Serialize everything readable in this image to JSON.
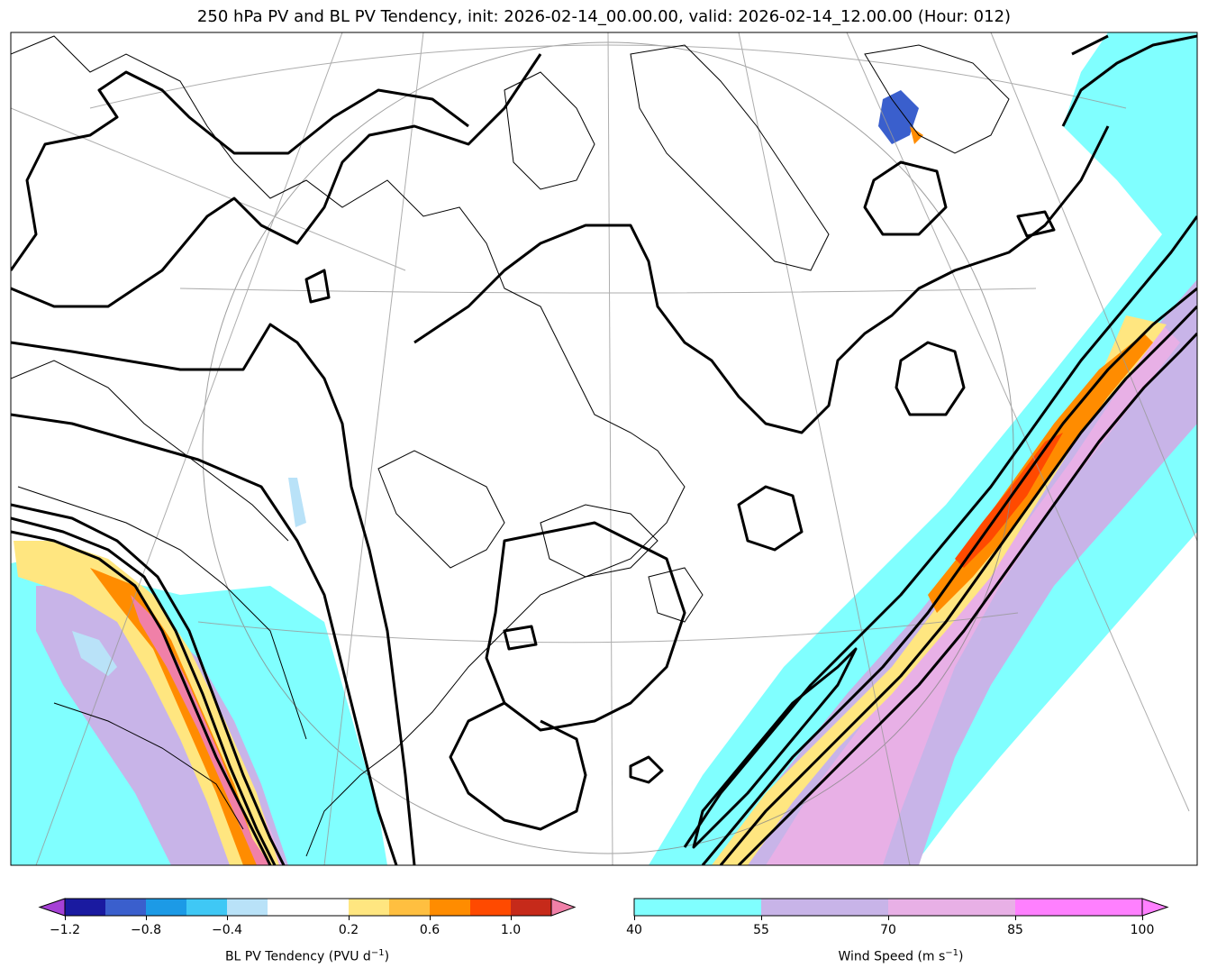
{
  "title": "250 hPa PV and BL PV Tendency, init: 2026-02-14_00.00.00, valid: 2026-02-14_12.00.00 (Hour: 012)",
  "colors": {
    "wind_40_55": "#80ffff",
    "wind_55_70": "#c8b4e8",
    "wind_70_85": "#e8b0e6",
    "wind_85_100": "#ff80ff",
    "pv_contour": "#000000",
    "land_ocean": "#ffffff",
    "graticule": "#999999"
  },
  "colorbar_left": {
    "label": "BL PV Tendency (PVU d",
    "label_sup": "−1",
    "label_tail": ")",
    "ticks": [
      "−1.2",
      "−0.8",
      "−0.4",
      "0.2",
      "0.6",
      "1.0"
    ],
    "tick_values": [
      -1.2,
      -0.8,
      -0.4,
      0.2,
      0.6,
      1.0
    ],
    "bounds": [
      -1.2,
      -1.0,
      -0.8,
      -0.6,
      -0.4,
      -0.2,
      0.2,
      0.4,
      0.6,
      0.8,
      1.0,
      1.2
    ],
    "colors": [
      "#1a1aa0",
      "#3a5fcd",
      "#1c9ae6",
      "#3fc8f5",
      "#b9e2f8",
      "#ffffff",
      "#ffe680",
      "#ffbf40",
      "#ff8c00",
      "#ff4a00",
      "#c62a1a"
    ],
    "extend_low_color": "#a641d6",
    "extend_high_color": "#f080a8"
  },
  "colorbar_right": {
    "label": "Wind Speed (m s",
    "label_sup": "−1",
    "label_tail": ")",
    "ticks": [
      "40",
      "55",
      "70",
      "85",
      "100"
    ],
    "tick_values": [
      40,
      55,
      70,
      85,
      100
    ],
    "colors": [
      "#80ffff",
      "#c8b4e8",
      "#e8b0e6",
      "#ff80ff"
    ],
    "extend_high_color": "#ff80ff"
  }
}
